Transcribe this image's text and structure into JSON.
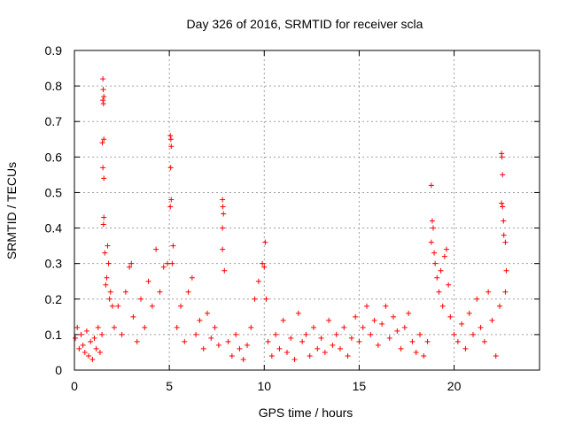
{
  "chart_data": {
    "type": "scatter",
    "title": "Day 326 of 2016, SRMTID for receiver scla",
    "xlabel": "GPS time / hours",
    "ylabel": "SRMTID / TECUs",
    "xlim": [
      0,
      24.5
    ],
    "ylim": [
      0,
      0.9
    ],
    "x_ticks": [
      "0",
      "5",
      "10",
      "15",
      "20"
    ],
    "y_ticks": [
      "0",
      "0.1",
      "0.2",
      "0.3",
      "0.4",
      "0.5",
      "0.6",
      "0.7",
      "0.8",
      "0.9"
    ],
    "grid": true,
    "marker": "+",
    "color": "#ff0000",
    "series": [
      {
        "name": "SRMTID",
        "points": [
          [
            0.05,
            0.09
          ],
          [
            0.15,
            0.12
          ],
          [
            0.25,
            0.06
          ],
          [
            0.35,
            0.1
          ],
          [
            0.45,
            0.07
          ],
          [
            0.55,
            0.05
          ],
          [
            0.65,
            0.11
          ],
          [
            0.75,
            0.04
          ],
          [
            0.85,
            0.08
          ],
          [
            0.95,
            0.03
          ],
          [
            1.05,
            0.09
          ],
          [
            1.15,
            0.06
          ],
          [
            1.25,
            0.12
          ],
          [
            1.35,
            0.05
          ],
          [
            1.45,
            0.1
          ],
          [
            1.5,
            0.82
          ],
          [
            1.52,
            0.79
          ],
          [
            1.55,
            0.77
          ],
          [
            1.5,
            0.76
          ],
          [
            1.53,
            0.75
          ],
          [
            1.47,
            0.64
          ],
          [
            1.55,
            0.65
          ],
          [
            1.5,
            0.57
          ],
          [
            1.55,
            0.54
          ],
          [
            1.55,
            0.43
          ],
          [
            1.53,
            0.41
          ],
          [
            1.6,
            0.33
          ],
          [
            1.7,
            0.26
          ],
          [
            1.8,
            0.3
          ],
          [
            1.9,
            0.22
          ],
          [
            2.0,
            0.18
          ],
          [
            1.75,
            0.35
          ],
          [
            1.65,
            0.24
          ],
          [
            1.85,
            0.2
          ],
          [
            2.1,
            0.12
          ],
          [
            2.3,
            0.18
          ],
          [
            2.5,
            0.1
          ],
          [
            2.7,
            0.22
          ],
          [
            2.9,
            0.29
          ],
          [
            3.0,
            0.3
          ],
          [
            3.1,
            0.15
          ],
          [
            3.3,
            0.08
          ],
          [
            3.5,
            0.2
          ],
          [
            3.7,
            0.12
          ],
          [
            3.9,
            0.25
          ],
          [
            4.1,
            0.18
          ],
          [
            4.3,
            0.34
          ],
          [
            4.5,
            0.22
          ],
          [
            4.7,
            0.29
          ],
          [
            4.9,
            0.3
          ],
          [
            5.05,
            0.66
          ],
          [
            5.08,
            0.65
          ],
          [
            5.1,
            0.63
          ],
          [
            5.07,
            0.57
          ],
          [
            5.1,
            0.48
          ],
          [
            5.05,
            0.46
          ],
          [
            5.2,
            0.35
          ],
          [
            5.15,
            0.3
          ],
          [
            5.4,
            0.12
          ],
          [
            5.6,
            0.18
          ],
          [
            5.8,
            0.08
          ],
          [
            6.0,
            0.22
          ],
          [
            6.2,
            0.26
          ],
          [
            6.4,
            0.1
          ],
          [
            6.6,
            0.14
          ],
          [
            6.8,
            0.06
          ],
          [
            7.0,
            0.16
          ],
          [
            7.2,
            0.09
          ],
          [
            7.4,
            0.12
          ],
          [
            7.6,
            0.07
          ],
          [
            7.8,
            0.48
          ],
          [
            7.82,
            0.46
          ],
          [
            7.85,
            0.44
          ],
          [
            7.8,
            0.4
          ],
          [
            7.8,
            0.34
          ],
          [
            7.9,
            0.28
          ],
          [
            8.1,
            0.08
          ],
          [
            8.3,
            0.04
          ],
          [
            8.5,
            0.1
          ],
          [
            8.7,
            0.06
          ],
          [
            8.9,
            0.03
          ],
          [
            9.1,
            0.07
          ],
          [
            9.3,
            0.12
          ],
          [
            9.5,
            0.2
          ],
          [
            9.7,
            0.25
          ],
          [
            9.9,
            0.3
          ],
          [
            10.0,
            0.29
          ],
          [
            10.05,
            0.36
          ],
          [
            10.1,
            0.2
          ],
          [
            10.2,
            0.08
          ],
          [
            10.4,
            0.04
          ],
          [
            10.6,
            0.1
          ],
          [
            10.8,
            0.06
          ],
          [
            11.0,
            0.14
          ],
          [
            11.2,
            0.05
          ],
          [
            11.4,
            0.09
          ],
          [
            11.6,
            0.03
          ],
          [
            11.8,
            0.16
          ],
          [
            12.0,
            0.08
          ],
          [
            12.2,
            0.1
          ],
          [
            12.4,
            0.04
          ],
          [
            12.6,
            0.12
          ],
          [
            12.8,
            0.06
          ],
          [
            13.0,
            0.09
          ],
          [
            13.2,
            0.05
          ],
          [
            13.4,
            0.14
          ],
          [
            13.6,
            0.07
          ],
          [
            13.8,
            0.1
          ],
          [
            14.0,
            0.06
          ],
          [
            14.2,
            0.12
          ],
          [
            14.4,
            0.04
          ],
          [
            14.6,
            0.09
          ],
          [
            14.8,
            0.15
          ],
          [
            15.0,
            0.08
          ],
          [
            15.2,
            0.12
          ],
          [
            15.4,
            0.18
          ],
          [
            15.6,
            0.1
          ],
          [
            15.8,
            0.14
          ],
          [
            16.0,
            0.07
          ],
          [
            16.2,
            0.13
          ],
          [
            16.4,
            0.18
          ],
          [
            16.6,
            0.09
          ],
          [
            16.8,
            0.15
          ],
          [
            17.0,
            0.11
          ],
          [
            17.2,
            0.06
          ],
          [
            17.4,
            0.12
          ],
          [
            17.6,
            0.16
          ],
          [
            17.8,
            0.08
          ],
          [
            18.0,
            0.05
          ],
          [
            18.2,
            0.1
          ],
          [
            18.4,
            0.04
          ],
          [
            18.6,
            0.08
          ],
          [
            18.8,
            0.52
          ],
          [
            18.85,
            0.42
          ],
          [
            18.9,
            0.4
          ],
          [
            18.8,
            0.36
          ],
          [
            18.95,
            0.33
          ],
          [
            19.0,
            0.3
          ],
          [
            19.1,
            0.26
          ],
          [
            19.2,
            0.22
          ],
          [
            19.3,
            0.28
          ],
          [
            19.4,
            0.18
          ],
          [
            19.5,
            0.32
          ],
          [
            19.6,
            0.34
          ],
          [
            19.7,
            0.24
          ],
          [
            19.8,
            0.15
          ],
          [
            20.0,
            0.1
          ],
          [
            20.2,
            0.08
          ],
          [
            20.4,
            0.13
          ],
          [
            20.6,
            0.06
          ],
          [
            20.8,
            0.16
          ],
          [
            21.0,
            0.1
          ],
          [
            21.2,
            0.2
          ],
          [
            21.4,
            0.12
          ],
          [
            21.6,
            0.08
          ],
          [
            21.8,
            0.22
          ],
          [
            22.0,
            0.14
          ],
          [
            22.2,
            0.04
          ],
          [
            22.4,
            0.18
          ],
          [
            22.5,
            0.61
          ],
          [
            22.52,
            0.6
          ],
          [
            22.55,
            0.55
          ],
          [
            22.5,
            0.47
          ],
          [
            22.55,
            0.46
          ],
          [
            22.6,
            0.42
          ],
          [
            22.62,
            0.38
          ],
          [
            22.7,
            0.36
          ],
          [
            22.75,
            0.28
          ],
          [
            22.7,
            0.22
          ]
        ]
      }
    ]
  }
}
